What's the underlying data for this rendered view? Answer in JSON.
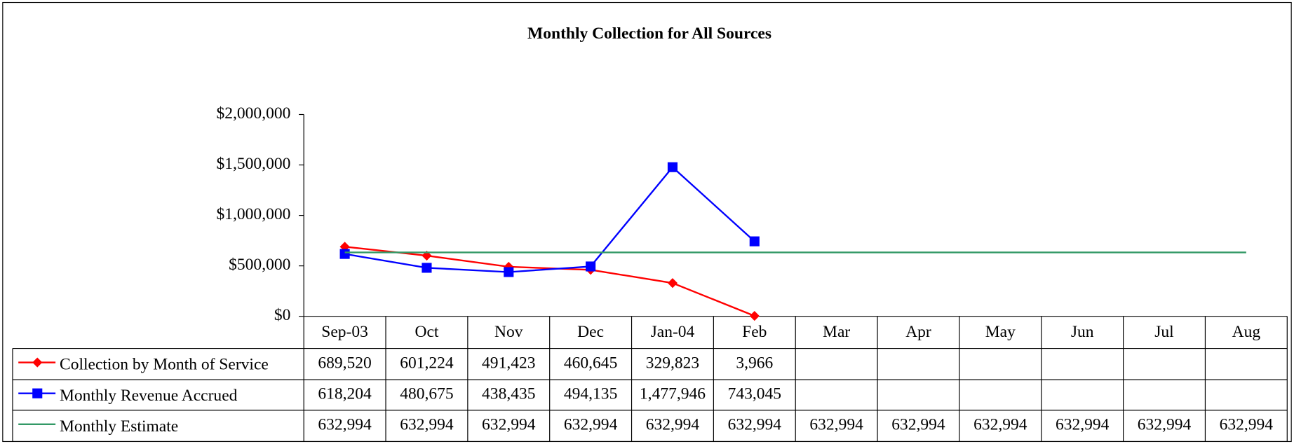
{
  "chart_data": {
    "type": "line",
    "title": "Monthly Collection for All Sources",
    "categories": [
      "Sep-03",
      "Oct",
      "Nov",
      "Dec",
      "Jan-04",
      "Feb",
      "Mar",
      "Apr",
      "May",
      "Jun",
      "Jul",
      "Aug"
    ],
    "series": [
      {
        "name": "Collection by Month of Service",
        "color": "#ff0000",
        "marker": "diamond",
        "values": [
          689520,
          601224,
          491423,
          460645,
          329823,
          3966,
          null,
          null,
          null,
          null,
          null,
          null
        ],
        "value_labels": [
          "689,520",
          "601,224",
          "491,423",
          "460,645",
          "329,823",
          "3,966",
          null,
          null,
          null,
          null,
          null,
          null
        ]
      },
      {
        "name": "Monthly Revenue Accrued",
        "color": "#0000ff",
        "marker": "square",
        "values": [
          618204,
          480675,
          438435,
          494135,
          1477946,
          743045,
          null,
          null,
          null,
          null,
          null,
          null
        ],
        "value_labels": [
          "618,204",
          "480,675",
          "438,435",
          "494,135",
          "1,477,946",
          "743,045",
          null,
          null,
          null,
          null,
          null,
          null
        ]
      },
      {
        "name": "Monthly Estimate",
        "color": "#339966",
        "marker": "none",
        "values": [
          632994,
          632994,
          632994,
          632994,
          632994,
          632994,
          632994,
          632994,
          632994,
          632994,
          632994,
          632994
        ],
        "value_labels": [
          "632,994",
          "632,994",
          "632,994",
          "632,994",
          "632,994",
          "632,994",
          "632,994",
          "632,994",
          "632,994",
          "632,994",
          "632,994",
          "632,994"
        ]
      }
    ],
    "ylim": [
      0,
      2000000
    ],
    "yticks": [
      {
        "value": 0,
        "label": "$0"
      },
      {
        "value": 500000,
        "label": "$500,000"
      },
      {
        "value": 1000000,
        "label": "$1,000,000"
      },
      {
        "value": 1500000,
        "label": "$1,500,000"
      },
      {
        "value": 2000000,
        "label": "$2,000,000"
      }
    ],
    "data_table": true
  }
}
